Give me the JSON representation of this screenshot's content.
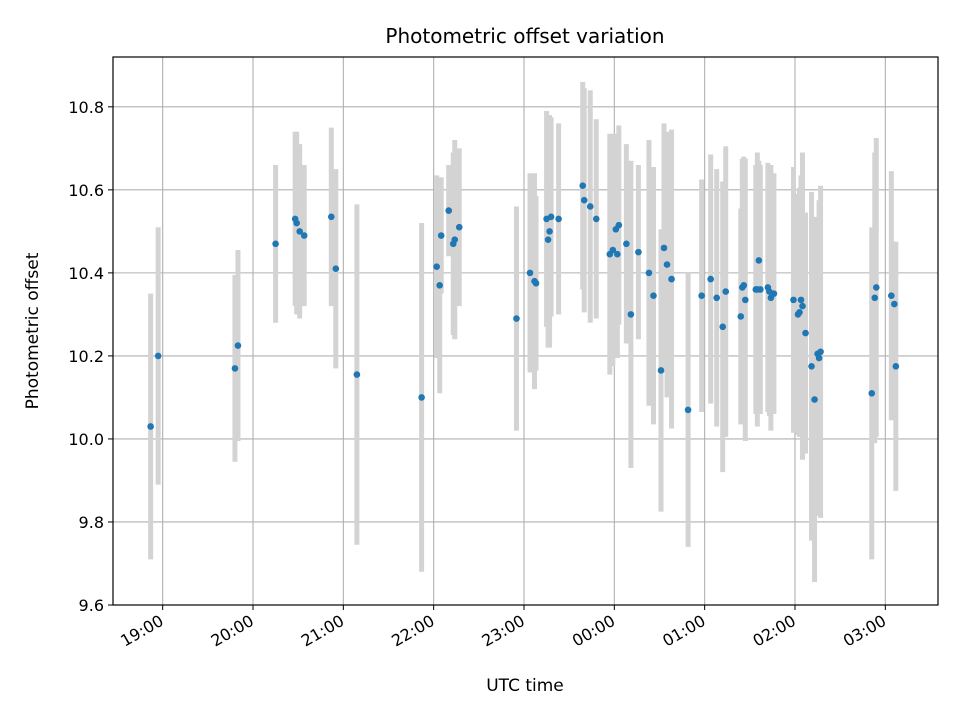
{
  "chart_data": {
    "type": "scatter",
    "title": "Photometric offset variation",
    "xlabel": "UTC time",
    "ylabel": "Photometric offset",
    "x_unit": "UTC time (HH:MM)",
    "xlim": [
      "18:27",
      "03:35"
    ],
    "ylim": [
      9.6,
      10.92
    ],
    "x_tick_labels": [
      "19:00",
      "20:00",
      "21:00",
      "22:00",
      "23:00",
      "00:00",
      "01:00",
      "02:00",
      "03:00"
    ],
    "y_ticks": [
      9.6,
      9.8,
      10.0,
      10.2,
      10.4,
      10.6,
      10.8
    ],
    "y_tick_labels": [
      "9.6",
      "9.8",
      "10.0",
      "10.2",
      "10.4",
      "10.6",
      "10.8"
    ],
    "grid": true,
    "colors": {
      "points": "#1f77b4",
      "errorbars": "#d3d3d3",
      "grid": "#b0b0b0",
      "axes": "#000000"
    },
    "series": [
      {
        "x": [
          "18:52",
          "18:57",
          "19:48",
          "19:50",
          "20:15",
          "20:28",
          "20:29",
          "20:31",
          "20:34",
          "20:52",
          "20:55",
          "21:09",
          "21:52",
          "22:02",
          "22:04",
          "22:05",
          "22:10",
          "22:13",
          "22:14",
          "22:17",
          "22:55",
          "23:04",
          "23:07",
          "23:08",
          "23:15",
          "23:16",
          "23:17",
          "23:18",
          "23:23",
          "23:39",
          "23:40",
          "23:44",
          "23:48",
          "23:57",
          "23:59",
          "24:01",
          "24:02",
          "24:03",
          "24:08",
          "24:11",
          "24:16",
          "24:23",
          "24:26",
          "24:31",
          "24:33",
          "24:35",
          "24:38",
          "24:49",
          "24:58",
          "25:04",
          "25:08",
          "25:12",
          "25:14",
          "25:24",
          "25:25",
          "25:26",
          "25:27",
          "25:34",
          "25:35",
          "25:36",
          "25:37",
          "25:42",
          "25:43",
          "25:44",
          "25:46",
          "25:59",
          "26:02",
          "26:03",
          "26:04",
          "26:05",
          "26:07",
          "26:11",
          "26:13",
          "26:15",
          "26:16",
          "26:17",
          "26:51",
          "26:53",
          "26:54",
          "27:04",
          "27:06",
          "27:07"
        ],
        "y": [
          10.03,
          10.2,
          10.17,
          10.225,
          10.47,
          10.53,
          10.52,
          10.5,
          10.49,
          10.535,
          10.41,
          10.155,
          10.1,
          10.415,
          10.37,
          10.49,
          10.55,
          10.47,
          10.48,
          10.51,
          10.29,
          10.4,
          10.38,
          10.375,
          10.53,
          10.48,
          10.5,
          10.535,
          10.53,
          10.61,
          10.575,
          10.56,
          10.53,
          10.445,
          10.455,
          10.505,
          10.445,
          10.515,
          10.47,
          10.3,
          10.45,
          10.4,
          10.345,
          10.165,
          10.46,
          10.42,
          10.385,
          10.07,
          10.345,
          10.385,
          10.34,
          10.27,
          10.355,
          10.295,
          10.365,
          10.37,
          10.335,
          10.36,
          10.36,
          10.43,
          10.36,
          10.365,
          10.355,
          10.34,
          10.35,
          10.335,
          10.3,
          10.305,
          10.335,
          10.32,
          10.255,
          10.175,
          10.095,
          10.205,
          10.195,
          10.21,
          10.11,
          10.34,
          10.365,
          10.345,
          10.325,
          10.175
        ],
        "yerr": [
          0.32,
          0.31,
          0.225,
          0.23,
          0.19,
          0.21,
          0.22,
          0.21,
          0.17,
          0.215,
          0.24,
          0.41,
          0.42,
          0.22,
          0.26,
          0.14,
          0.11,
          0.22,
          0.24,
          0.19,
          0.27,
          0.24,
          0.26,
          0.21,
          0.26,
          0.26,
          0.28,
          0.24,
          0.23,
          0.25,
          0.27,
          0.28,
          0.24,
          0.29,
          0.28,
          0.23,
          0.25,
          0.24,
          0.24,
          0.37,
          0.21,
          0.32,
          0.31,
          0.34,
          0.3,
          0.32,
          0.36,
          0.33,
          0.28,
          0.3,
          0.31,
          0.35,
          0.35,
          0.26,
          0.31,
          0.31,
          0.34,
          0.3,
          0.33,
          0.24,
          0.3,
          0.3,
          0.3,
          0.32,
          0.29,
          0.32,
          0.29,
          0.3,
          0.3,
          0.37,
          0.29,
          0.42,
          0.44,
          0.27,
          0.38,
          0.4,
          0.4,
          0.35,
          0.36,
          0.3,
          0.15,
          0.3
        ]
      }
    ]
  }
}
